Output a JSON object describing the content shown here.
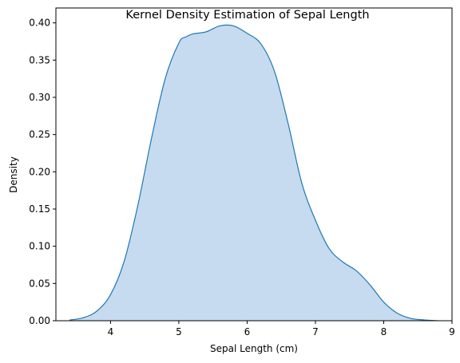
{
  "chart_data": {
    "type": "area",
    "title": "Kernel Density Estimation of Sepal Length",
    "xlabel": "Sepal Length (cm)",
    "ylabel": "Density",
    "xlim": [
      3.2,
      9.0
    ],
    "ylim": [
      0.0,
      0.42
    ],
    "xticks": [
      4,
      5,
      6,
      7,
      8,
      9
    ],
    "yticks": [
      0.0,
      0.05,
      0.1,
      0.15,
      0.2,
      0.25,
      0.3,
      0.35,
      0.4
    ],
    "grid": false,
    "colors": {
      "line": "#1f77b4",
      "fill": "#c6dbef"
    },
    "series": [
      {
        "x": [
          3.4,
          3.6,
          3.8,
          4.0,
          4.2,
          4.4,
          4.6,
          4.8,
          5.0,
          5.1,
          5.2,
          5.4,
          5.6,
          5.8,
          6.0,
          6.2,
          6.4,
          6.6,
          6.8,
          7.0,
          7.2,
          7.4,
          7.6,
          7.8,
          8.0,
          8.2,
          8.4,
          8.6,
          8.8
        ],
        "y": [
          0.001,
          0.004,
          0.013,
          0.035,
          0.08,
          0.155,
          0.245,
          0.325,
          0.373,
          0.381,
          0.385,
          0.388,
          0.396,
          0.396,
          0.386,
          0.372,
          0.335,
          0.265,
          0.185,
          0.135,
          0.097,
          0.079,
          0.067,
          0.048,
          0.025,
          0.01,
          0.003,
          0.001,
          0.0
        ]
      }
    ]
  }
}
